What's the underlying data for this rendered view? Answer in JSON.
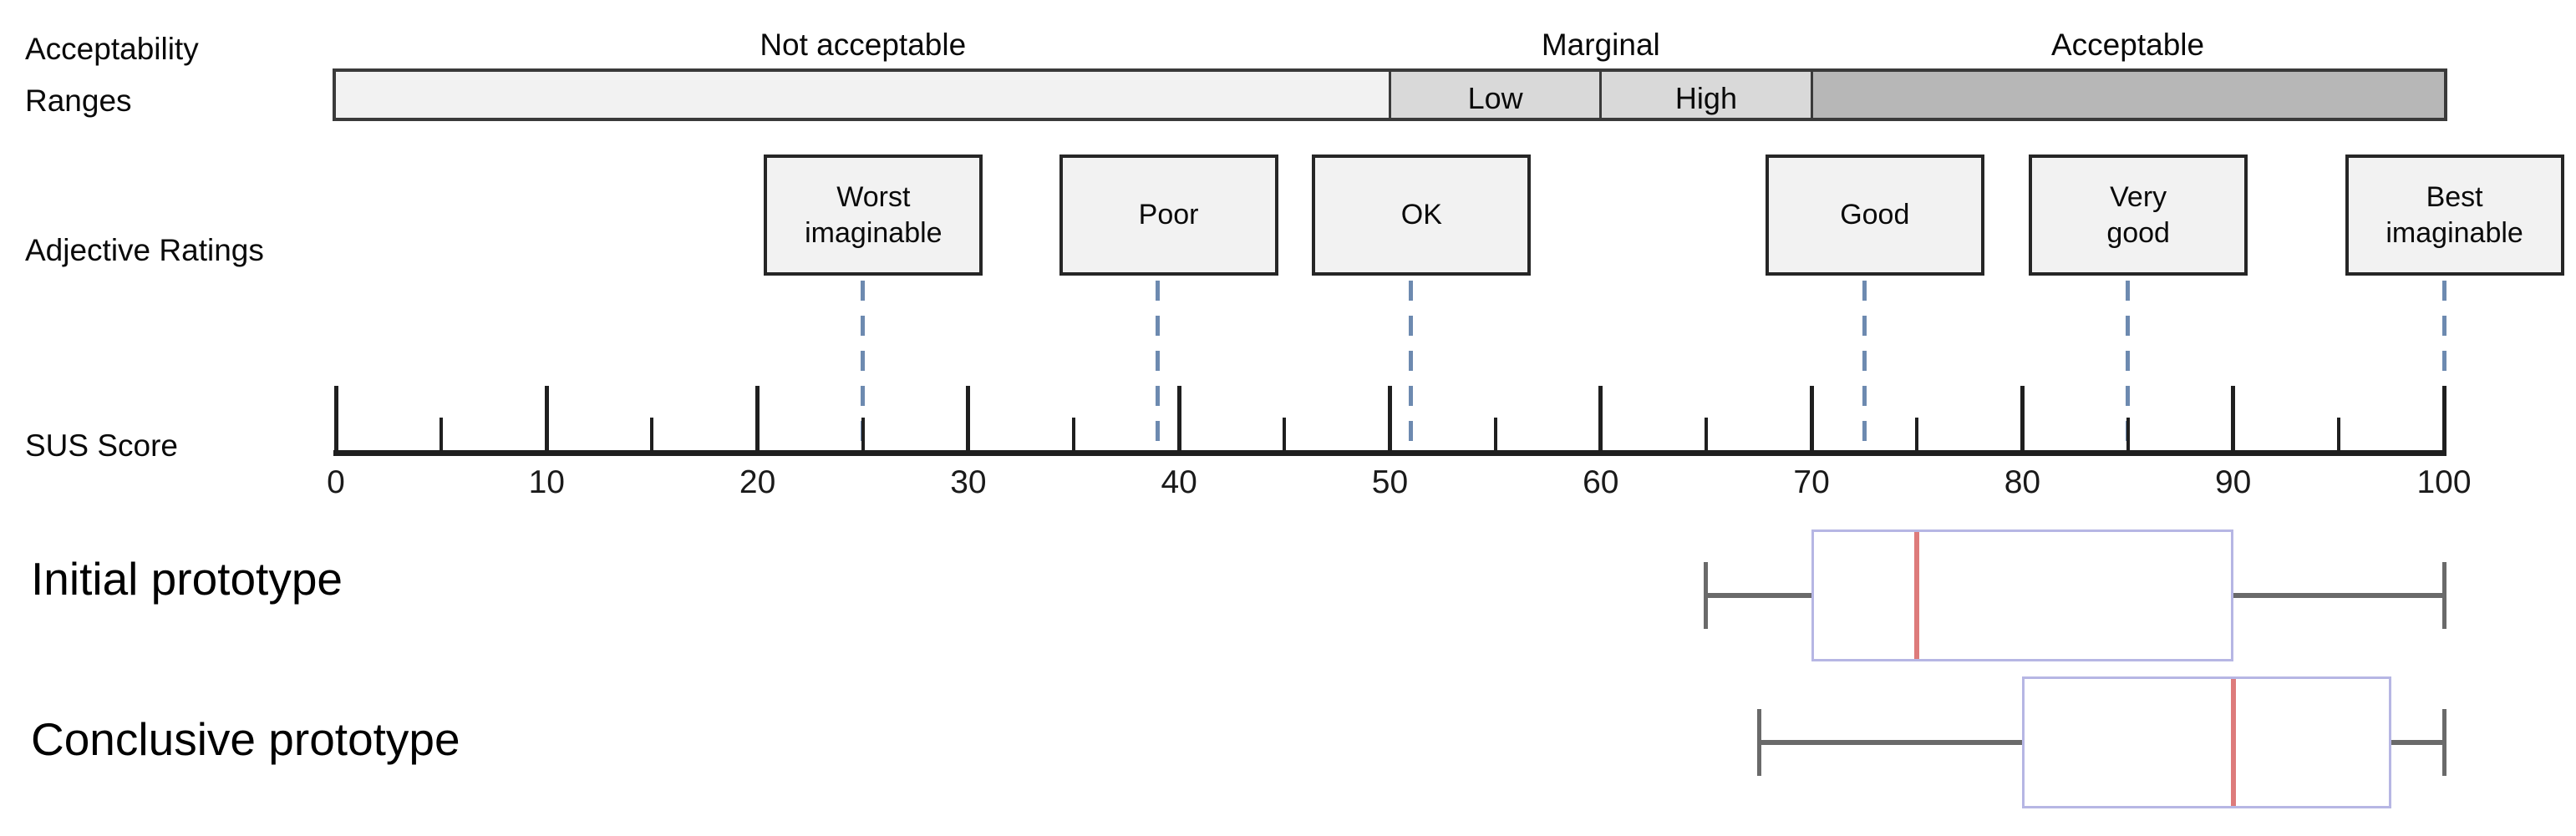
{
  "labels": {
    "acceptability_line1": "Acceptability",
    "acceptability_line2": "Ranges",
    "adjective_ratings": "Adjective Ratings",
    "sus_score": "SUS Score"
  },
  "colors": {
    "axis": "#1f1f1f",
    "tick_label": "#1a1a1a",
    "bar_border": "#3a3a3a",
    "bar_fill_not_acceptable": "#f2f2f2",
    "bar_fill_marginal": "#d9d9d9",
    "bar_fill_acceptable": "#b7b7b7",
    "adjective_box_fill": "#f2f2f2",
    "adjective_box_border": "#262626",
    "dashed_connector": "#6d8ab0",
    "boxplot_box_border": "#b6b6e4",
    "boxplot_median": "#dd7b7b",
    "boxplot_whisker": "#6a6a6a"
  },
  "chart_data": {
    "type": "boxplot",
    "title": "",
    "xlabel": "SUS Score",
    "ylabel": "",
    "axis": {
      "min": 0,
      "max": 100,
      "major_ticks": [
        0,
        10,
        20,
        30,
        40,
        50,
        60,
        70,
        80,
        90,
        100
      ],
      "minor_ticks": [
        5,
        15,
        25,
        35,
        45,
        55,
        65,
        75,
        85,
        95
      ]
    },
    "acceptability_bar": {
      "row_label": "Acceptability Ranges",
      "top_labels": [
        {
          "text": "Not acceptable",
          "value": 25
        },
        {
          "text": "Marginal",
          "value": 60
        },
        {
          "text": "Acceptable",
          "value": 85
        }
      ],
      "segments": [
        {
          "text": "",
          "name": "not-acceptable",
          "from": 0,
          "to": 50,
          "fill": "#f2f2f2"
        },
        {
          "text": "Low",
          "name": "marginal-low",
          "from": 50,
          "to": 60,
          "fill": "#d9d9d9"
        },
        {
          "text": "High",
          "name": "marginal-high",
          "from": 60,
          "to": 70,
          "fill": "#d9d9d9"
        },
        {
          "text": "",
          "name": "acceptable",
          "from": 70,
          "to": 100,
          "fill": "#b7b7b7"
        }
      ]
    },
    "adjective_ratings": {
      "row_label": "Adjective Ratings",
      "items": [
        {
          "label": "Worst imaginable",
          "lines": [
            "Worst",
            "imaginable"
          ],
          "box_value": 25.5,
          "line_value": 25
        },
        {
          "label": "Poor",
          "lines": [
            "Poor"
          ],
          "box_value": 39.5,
          "line_value": 39
        },
        {
          "label": "OK",
          "lines": [
            "OK"
          ],
          "box_value": 51.5,
          "line_value": 51
        },
        {
          "label": "Good",
          "lines": [
            "Good"
          ],
          "box_value": 73,
          "line_value": 72.5
        },
        {
          "label": "Very good",
          "lines": [
            "Very",
            "good"
          ],
          "box_value": 85.5,
          "line_value": 85
        },
        {
          "label": "Best imaginable",
          "lines": [
            "Best",
            "imaginable"
          ],
          "box_value": 100.5,
          "line_value": 100
        }
      ]
    },
    "series": [
      {
        "name": "Initial prototype",
        "min": 65,
        "q1": 70,
        "median": 75,
        "q3": 90,
        "max": 100
      },
      {
        "name": "Conclusive prototype",
        "min": 67.5,
        "q1": 80,
        "median": 90,
        "q3": 97.5,
        "max": 100
      }
    ]
  }
}
